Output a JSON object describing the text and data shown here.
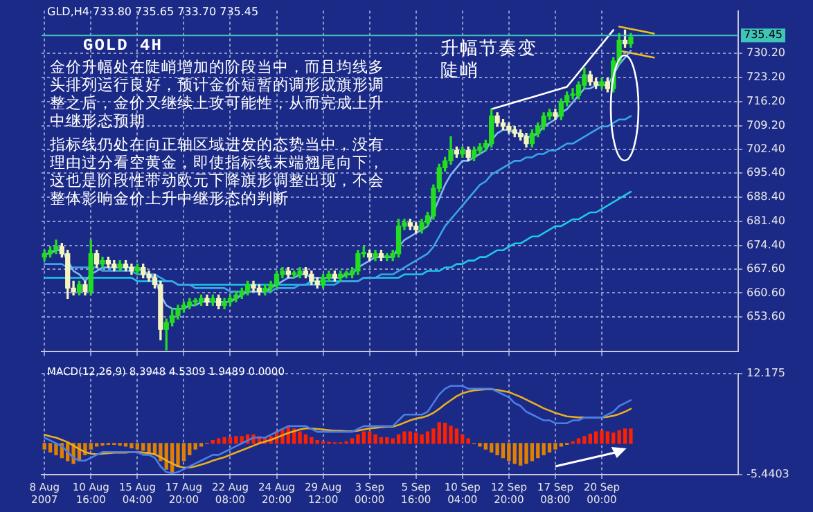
{
  "chart_data": [
    {
      "type": "candlestick",
      "title": "GOLD 4H",
      "subtitle": "GLD,H4 733.80 735.65 733.70 735.45",
      "ohlc": [
        [
          671,
          673,
          670,
          672
        ],
        [
          672,
          674,
          671,
          673
        ],
        [
          673,
          676,
          672,
          674
        ],
        [
          674,
          675,
          671,
          672
        ],
        [
          672,
          673,
          659,
          662
        ],
        [
          662,
          664,
          660,
          661
        ],
        [
          661,
          664,
          660,
          663
        ],
        [
          663,
          664,
          660,
          661
        ],
        [
          661,
          676,
          660,
          672
        ],
        [
          672,
          673,
          668,
          669
        ],
        [
          669,
          671,
          668,
          670
        ],
        [
          670,
          671,
          668,
          669
        ],
        [
          669,
          670,
          667,
          668
        ],
        [
          668,
          670,
          667,
          669
        ],
        [
          669,
          670,
          667,
          668
        ],
        [
          668,
          669,
          666,
          667
        ],
        [
          667,
          669,
          666,
          668
        ],
        [
          668,
          669,
          665,
          666
        ],
        [
          666,
          667,
          664,
          665
        ],
        [
          665,
          666,
          662,
          663
        ],
        [
          663,
          664,
          647,
          650
        ],
        [
          650,
          653,
          644,
          652
        ],
        [
          652,
          656,
          651,
          654
        ],
        [
          654,
          657,
          653,
          656
        ],
        [
          656,
          658,
          655,
          657
        ],
        [
          657,
          659,
          656,
          658
        ],
        [
          658,
          659,
          657,
          658
        ],
        [
          658,
          660,
          657,
          659
        ],
        [
          659,
          660,
          657,
          658
        ],
        [
          658,
          660,
          657,
          659
        ],
        [
          659,
          660,
          656,
          657
        ],
        [
          657,
          659,
          656,
          658
        ],
        [
          658,
          660,
          657,
          659
        ],
        [
          659,
          661,
          658,
          660
        ],
        [
          660,
          662,
          659,
          661
        ],
        [
          661,
          664,
          660,
          663
        ],
        [
          663,
          664,
          661,
          662
        ],
        [
          662,
          663,
          660,
          661
        ],
        [
          661,
          663,
          660,
          662
        ],
        [
          662,
          664,
          661,
          663
        ],
        [
          663,
          667,
          662,
          666
        ],
        [
          666,
          668,
          665,
          667
        ],
        [
          667,
          668,
          665,
          666
        ],
        [
          666,
          667,
          665,
          666
        ],
        [
          666,
          668,
          665,
          667
        ],
        [
          667,
          668,
          665,
          666
        ],
        [
          666,
          667,
          663,
          664
        ],
        [
          664,
          665,
          662,
          663
        ],
        [
          663,
          666,
          662,
          665
        ],
        [
          665,
          667,
          664,
          666
        ],
        [
          666,
          667,
          664,
          665
        ],
        [
          665,
          667,
          664,
          666
        ],
        [
          666,
          667,
          665,
          666
        ],
        [
          666,
          668,
          665,
          667
        ],
        [
          667,
          673,
          666,
          672
        ],
        [
          672,
          674,
          671,
          672
        ],
        [
          672,
          673,
          670,
          671
        ],
        [
          671,
          673,
          670,
          672
        ],
        [
          672,
          673,
          670,
          671
        ],
        [
          671,
          672,
          670,
          671
        ],
        [
          671,
          673,
          670,
          672
        ],
        [
          672,
          682,
          671,
          680
        ],
        [
          680,
          682,
          679,
          681
        ],
        [
          681,
          682,
          679,
          680
        ],
        [
          680,
          681,
          678,
          679
        ],
        [
          679,
          682,
          678,
          681
        ],
        [
          681,
          684,
          680,
          683
        ],
        [
          683,
          692,
          682,
          691
        ],
        [
          691,
          698,
          690,
          697
        ],
        [
          697,
          700,
          696,
          699
        ],
        [
          699,
          706,
          698,
          702
        ],
        [
          702,
          703,
          700,
          701
        ],
        [
          701,
          703,
          700,
          702
        ],
        [
          702,
          703,
          699,
          700
        ],
        [
          700,
          703,
          699,
          702
        ],
        [
          702,
          704,
          701,
          703
        ],
        [
          703,
          705,
          702,
          704
        ],
        [
          704,
          714,
          703,
          712
        ],
        [
          712,
          713,
          709,
          710
        ],
        [
          710,
          711,
          708,
          709
        ],
        [
          709,
          710,
          707,
          708
        ],
        [
          708,
          709,
          706,
          707
        ],
        [
          707,
          708,
          705,
          706
        ],
        [
          706,
          707,
          703,
          704
        ],
        [
          704,
          708,
          703,
          707
        ],
        [
          707,
          710,
          706,
          709
        ],
        [
          709,
          713,
          708,
          712
        ],
        [
          712,
          714,
          711,
          713
        ],
        [
          713,
          714,
          711,
          712
        ],
        [
          712,
          717,
          711,
          716
        ],
        [
          716,
          719,
          715,
          718
        ],
        [
          718,
          720,
          717,
          718
        ],
        [
          718,
          722,
          717,
          721
        ],
        [
          721,
          726,
          720,
          724
        ],
        [
          724,
          725,
          721,
          722
        ],
        [
          722,
          723,
          720,
          721
        ],
        [
          721,
          723,
          720,
          722
        ],
        [
          722,
          723,
          719,
          720
        ],
        [
          720,
          729,
          719,
          728
        ],
        [
          728,
          736,
          727,
          734
        ],
        [
          734,
          737,
          732,
          733
        ],
        [
          733,
          736,
          732,
          735
        ],
        null,
        null,
        null,
        null,
        null,
        null,
        null,
        null,
        null,
        null,
        null,
        null,
        null,
        null,
        null,
        null,
        null,
        null
      ],
      "colors": [
        "#22dd22",
        "#22dd22",
        "#22dd22",
        "#f4f4c0",
        "#f4f4c0",
        "#f4f4c0",
        "#22dd22",
        "#f4f4c0",
        "#22dd22",
        "#f4f4c0",
        "#22dd22",
        "#f4f4c0",
        "#f4f4c0",
        "#22dd22",
        "#f4f4c0",
        "#f4f4c0",
        "#22dd22",
        "#f4f4c0",
        "#f4f4c0",
        "#f4f4c0",
        "#f4f4c0",
        "#22dd22",
        "#22dd22",
        "#22dd22",
        "#22dd22",
        "#22dd22",
        "#22dd22",
        "#22dd22",
        "#f4f4c0",
        "#22dd22",
        "#f4f4c0",
        "#22dd22",
        "#22dd22",
        "#22dd22",
        "#22dd22",
        "#22dd22",
        "#f4f4c0",
        "#f4f4c0",
        "#22dd22",
        "#22dd22",
        "#22dd22",
        "#22dd22",
        "#f4f4c0",
        "#22dd22",
        "#22dd22",
        "#f4f4c0",
        "#f4f4c0",
        "#f4f4c0",
        "#22dd22",
        "#22dd22",
        "#f4f4c0",
        "#22dd22",
        "#22dd22",
        "#22dd22",
        "#22dd22",
        "#22dd22",
        "#f4f4c0",
        "#22dd22",
        "#f4f4c0",
        "#22dd22",
        "#22dd22",
        "#22dd22",
        "#22dd22",
        "#f4f4c0",
        "#f4f4c0",
        "#22dd22",
        "#22dd22",
        "#22dd22",
        "#22dd22",
        "#22dd22",
        "#22dd22",
        "#f4f4c0",
        "#22dd22",
        "#f4f4c0",
        "#22dd22",
        "#22dd22",
        "#22dd22",
        "#22dd22",
        "#f4f4c0",
        "#f4f4c0",
        "#f4f4c0",
        "#f4f4c0",
        "#f4f4c0",
        "#f4f4c0",
        "#22dd22",
        "#22dd22",
        "#22dd22",
        "#22dd22",
        "#f4f4c0",
        "#22dd22",
        "#22dd22",
        "#22dd22",
        "#22dd22",
        "#22dd22",
        "#f4f4c0",
        "#f4f4c0",
        "#22dd22",
        "#f4f4c0",
        "#22dd22",
        "#22dd22",
        "#f4f4c0",
        "#22dd22",
        null,
        null,
        null,
        null,
        null,
        null,
        null,
        null,
        null,
        null,
        null,
        null,
        null,
        null,
        null,
        null,
        null,
        null
      ],
      "series": [
        {
          "type": "line",
          "color": "#7fb8f0",
          "values": [
            672,
            672,
            673,
            673,
            670,
            667,
            666,
            664,
            666,
            667,
            668,
            668,
            668,
            668,
            668,
            668,
            668,
            667,
            666,
            665,
            660,
            657,
            656,
            656,
            656,
            657,
            657,
            658,
            658,
            658,
            658,
            658,
            658,
            659,
            660,
            661,
            661,
            661,
            661,
            662,
            663,
            664,
            665,
            665,
            666,
            666,
            665,
            665,
            665,
            665,
            665,
            665,
            666,
            666,
            668,
            669,
            670,
            671,
            671,
            671,
            671,
            674,
            676,
            677,
            678,
            679,
            680,
            684,
            688,
            692,
            695,
            697,
            699,
            699,
            700,
            701,
            702,
            705,
            707,
            708,
            708,
            707,
            707,
            706,
            706,
            707,
            709,
            710,
            711,
            713,
            714,
            716,
            718,
            720,
            720,
            721,
            721,
            721,
            724,
            727,
            729,
            731,
            null,
            null,
            null,
            null,
            null,
            null,
            null,
            null,
            null,
            null,
            null,
            null,
            null,
            null,
            null,
            null,
            null,
            null
          ]
        },
        {
          "type": "line",
          "color": "#3aa6e6",
          "values": [
            669,
            669,
            669,
            669,
            668,
            668,
            668,
            668,
            668,
            668,
            667,
            667,
            667,
            667,
            667,
            667,
            666,
            666,
            666,
            666,
            665,
            664,
            664,
            663,
            663,
            663,
            662,
            662,
            662,
            662,
            662,
            662,
            661,
            661,
            661,
            661,
            661,
            661,
            661,
            661,
            662,
            662,
            662,
            662,
            663,
            663,
            663,
            663,
            663,
            663,
            663,
            664,
            664,
            664,
            664,
            665,
            665,
            665,
            666,
            666,
            666,
            667,
            668,
            669,
            670,
            671,
            672,
            674,
            677,
            680,
            682,
            684,
            686,
            688,
            690,
            692,
            693,
            695,
            696,
            697,
            698,
            699,
            699,
            700,
            700,
            701,
            701,
            702,
            702,
            703,
            704,
            704,
            705,
            706,
            707,
            708,
            709,
            709,
            710,
            711,
            711,
            712,
            null,
            null,
            null,
            null,
            null,
            null,
            null,
            null,
            null,
            null,
            null,
            null,
            null,
            null,
            null,
            null,
            null,
            null
          ]
        },
        {
          "type": "line",
          "color": "#1ec8e8",
          "values": [
            665,
            665,
            665,
            665,
            665,
            665,
            665,
            665,
            665,
            665,
            665,
            665,
            665,
            665,
            665,
            665,
            664,
            664,
            664,
            664,
            664,
            664,
            664,
            663,
            663,
            663,
            663,
            663,
            663,
            663,
            663,
            663,
            663,
            663,
            663,
            663,
            663,
            663,
            663,
            663,
            663,
            663,
            663,
            663,
            663,
            663,
            664,
            664,
            664,
            664,
            664,
            664,
            664,
            664,
            664,
            665,
            665,
            665,
            665,
            665,
            665,
            665,
            666,
            666,
            666,
            666,
            667,
            667,
            667,
            668,
            668,
            669,
            669,
            670,
            670,
            671,
            671,
            672,
            673,
            673,
            674,
            675,
            675,
            676,
            677,
            677,
            678,
            679,
            680,
            680,
            681,
            682,
            682,
            683,
            684,
            684,
            685,
            686,
            687,
            688,
            689,
            690,
            null,
            null,
            null,
            null,
            null,
            null,
            null,
            null,
            null,
            null,
            null,
            null,
            null,
            null,
            null,
            null,
            null,
            null
          ]
        },
        {
          "type": "line",
          "color": "#ffffff",
          "values": [
            null,
            null,
            null,
            null,
            null,
            null,
            null,
            null,
            null,
            null,
            null,
            null,
            null,
            null,
            null,
            null,
            null,
            null,
            null,
            null,
            null,
            null,
            null,
            null,
            null,
            null,
            null,
            null,
            null,
            null,
            null,
            null,
            null,
            null,
            null,
            null,
            null,
            null,
            null,
            null,
            null,
            null,
            null,
            null,
            null,
            null,
            null,
            null,
            null,
            null,
            null,
            null,
            null,
            null,
            null,
            null,
            null,
            null,
            null,
            null,
            null,
            null,
            null,
            null,
            null,
            null,
            null,
            null,
            null,
            null,
            null,
            null,
            null,
            null,
            null,
            null,
            null,
            714,
            null,
            null,
            null,
            null,
            null,
            null,
            null,
            null,
            null,
            null,
            null,
            null,
            720.5,
            null,
            null,
            null,
            null,
            null,
            null,
            null,
            737,
            null,
            null,
            null,
            null,
            null,
            null,
            null,
            null,
            null,
            null,
            null,
            null,
            null,
            null,
            null,
            null,
            null,
            null,
            null,
            null,
            null
          ]
        },
        {
          "type": "line",
          "color": "#f0c020",
          "values": [
            null,
            null,
            null,
            null,
            null,
            null,
            null,
            null,
            null,
            null,
            null,
            null,
            null,
            null,
            null,
            null,
            null,
            null,
            null,
            null,
            null,
            null,
            null,
            null,
            null,
            null,
            null,
            null,
            null,
            null,
            null,
            null,
            null,
            null,
            null,
            null,
            null,
            null,
            null,
            null,
            null,
            null,
            null,
            null,
            null,
            null,
            null,
            null,
            null,
            null,
            null,
            null,
            null,
            null,
            null,
            null,
            null,
            null,
            null,
            null,
            null,
            null,
            null,
            null,
            null,
            null,
            null,
            null,
            null,
            null,
            null,
            null,
            null,
            null,
            null,
            null,
            null,
            null,
            null,
            null,
            null,
            null,
            null,
            null,
            null,
            null,
            null,
            null,
            null,
            null,
            null,
            null,
            null,
            null,
            null,
            null,
            null,
            null,
            null,
            738,
            null,
            null,
            null,
            null,
            null,
            736,
            null,
            null,
            null,
            null,
            null,
            null,
            null,
            null,
            null,
            null,
            null,
            null,
            null,
            null
          ]
        },
        {
          "type": "line",
          "color": "#f0c020",
          "values": [
            null,
            null,
            null,
            null,
            null,
            null,
            null,
            null,
            null,
            null,
            null,
            null,
            null,
            null,
            null,
            null,
            null,
            null,
            null,
            null,
            null,
            null,
            null,
            null,
            null,
            null,
            null,
            null,
            null,
            null,
            null,
            null,
            null,
            null,
            null,
            null,
            null,
            null,
            null,
            null,
            null,
            null,
            null,
            null,
            null,
            null,
            null,
            null,
            null,
            null,
            null,
            null,
            null,
            null,
            null,
            null,
            null,
            null,
            null,
            null,
            null,
            null,
            null,
            null,
            null,
            null,
            null,
            null,
            null,
            null,
            null,
            null,
            null,
            null,
            null,
            null,
            null,
            null,
            null,
            null,
            null,
            null,
            null,
            null,
            null,
            null,
            null,
            null,
            null,
            null,
            null,
            null,
            null,
            null,
            null,
            null,
            null,
            null,
            null,
            731,
            null,
            null,
            null,
            null,
            null,
            729,
            null,
            null,
            null,
            null,
            null,
            null,
            null,
            null,
            null,
            null,
            null,
            null,
            null,
            null
          ]
        }
      ],
      "ylim": [
        643.5,
        742.6
      ],
      "yticks": [
        {
          "value": 653.6,
          "label": "653.60"
        },
        {
          "value": 660.6,
          "label": "660.60"
        },
        {
          "value": 667.6,
          "label": "667.60"
        },
        {
          "value": 674.4,
          "label": "674.40"
        },
        {
          "value": 681.4,
          "label": "681.40"
        },
        {
          "value": 688.4,
          "label": "688.40"
        },
        {
          "value": 695.4,
          "label": "695.40"
        },
        {
          "value": 702.4,
          "label": "702.40"
        },
        {
          "value": 709.2,
          "label": "709.20"
        },
        {
          "value": 716.2,
          "label": "716.20"
        },
        {
          "value": 723.2,
          "label": "723.20"
        },
        {
          "value": 730.2,
          "label": "730.20"
        }
      ],
      "ref_lines": [
        {
          "axis": "y",
          "value": 735.45,
          "label": "735.45",
          "color": "#3fc4b8"
        }
      ],
      "annotations": [
        "升幅节奏变陡峭",
        "金价升幅处在陡峭增加的阶段当中，而且均线多头排列运行良好，预计金价短暂的调形成旗形调整之后，金价又继续上攻可能性，从而完成上升中继形态预期",
        "指标线仍处在向正轴区域进发的态势当中，没有理由过分看空黄金，即使指标线末端翘尾向下，这也是阶段性带动欧元下降旗形调整出现，不会整体影响金价上升中继形态的判断"
      ],
      "grid": true,
      "tick_labels": "y"
    },
    {
      "type": "bar",
      "title": "MACD(12,26,9) 8.3948 4.5309 1.9489 0.0000",
      "categories": [
        "8 Aug 2007",
        null,
        null,
        null,
        null,
        null,
        null,
        null,
        "10 Aug 16:00",
        null,
        null,
        null,
        null,
        null,
        null,
        null,
        "15 Aug 04:00",
        null,
        null,
        null,
        null,
        null,
        null,
        null,
        "17 Aug 20:00",
        null,
        null,
        null,
        null,
        null,
        null,
        null,
        "22 Aug 08:00",
        null,
        null,
        null,
        null,
        null,
        null,
        null,
        "24 Aug 20:00",
        null,
        null,
        null,
        null,
        null,
        null,
        null,
        "29 Aug 12:00",
        null,
        null,
        null,
        null,
        null,
        null,
        null,
        "3 Sep 00:00",
        null,
        null,
        null,
        null,
        null,
        null,
        null,
        "5 Sep 16:00",
        null,
        null,
        null,
        null,
        null,
        null,
        null,
        "10 Sep 04:00",
        null,
        null,
        null,
        null,
        null,
        null,
        null,
        "12 Sep 20:00",
        null,
        null,
        null,
        null,
        null,
        null,
        null,
        "17 Sep 08:00",
        null,
        null,
        null,
        null,
        null,
        null,
        null,
        "20 Sep 00:00",
        null,
        null,
        null,
        null,
        null,
        null,
        null,
        null,
        null,
        null,
        null,
        null,
        null,
        null,
        null,
        null,
        null,
        null,
        null,
        null,
        null,
        null,
        null
      ],
      "series": [
        {
          "type": "bar",
          "values": [
            -1,
            -1.5,
            -2,
            -2.5,
            -3,
            -3.5,
            -3,
            -2,
            -1,
            -0.5,
            -0.3,
            -0.2,
            -0.2,
            -0.3,
            -0.5,
            -0.8,
            -1,
            -1.2,
            -1.5,
            -2,
            -3,
            -4.5,
            -5,
            -4,
            -3,
            -2,
            -1,
            -0.5,
            0,
            0.5,
            0.8,
            1,
            1,
            1.2,
            1.2,
            1.5,
            1.5,
            1.2,
            1,
            1.2,
            2,
            2.5,
            3,
            2.5,
            2,
            1.5,
            1,
            0.5,
            0.3,
            0.2,
            0.1,
            0.1,
            0.3,
            0.8,
            1.5,
            2,
            2,
            1.5,
            1,
            1,
            0.8,
            1.5,
            2,
            2,
            1.8,
            1.5,
            2,
            2.5,
            3.6,
            3.5,
            3,
            2.5,
            1.5,
            0.8,
            0,
            -0.5,
            -1,
            -1.5,
            -2,
            -2.5,
            -3,
            -3.5,
            -3.8,
            -3.5,
            -3,
            -2.5,
            -2,
            -1.5,
            -1,
            -0.5,
            -0.2,
            0.3,
            0.8,
            1.2,
            1.6,
            2,
            2.2,
            2,
            1.8,
            2.2,
            2.5,
            2.5,
            null,
            null,
            null,
            null,
            null,
            null,
            null,
            null,
            null,
            null,
            null,
            null,
            null,
            null,
            null,
            null,
            null,
            null
          ],
          "colors": [
            "#e08000",
            "#e08000",
            "#e08000",
            "#e08000",
            "#e08000",
            "#e08000",
            "#e08000",
            "#e08000",
            "#e08000",
            "#e08000",
            "#e08000",
            "#e08000",
            "#e08000",
            "#e08000",
            "#e08000",
            "#e08000",
            "#e08000",
            "#e08000",
            "#e08000",
            "#e08000",
            "#e08000",
            "#e08000",
            "#e08000",
            "#e08000",
            "#e08000",
            "#e08000",
            "#e08000",
            "#e08000",
            "#e08000",
            "#ff2000",
            "#ff2000",
            "#ff2000",
            "#ff2000",
            "#ff2000",
            "#ff2000",
            "#ff2000",
            "#ff2000",
            "#ff2000",
            "#ff2000",
            "#ff2000",
            "#ff2000",
            "#ff2000",
            "#ff2000",
            "#ff2000",
            "#ff2000",
            "#ff2000",
            "#ff2000",
            "#ff2000",
            "#ff2000",
            "#ff2000",
            "#ff2000",
            "#ff2000",
            "#ff2000",
            "#ff2000",
            "#ff2000",
            "#ff2000",
            "#ff2000",
            "#ff2000",
            "#ff2000",
            "#ff2000",
            "#ff2000",
            "#ff2000",
            "#ff2000",
            "#ff2000",
            "#ff2000",
            "#ff2000",
            "#ff2000",
            "#ff2000",
            "#ff2000",
            "#ff2000",
            "#ff2000",
            "#ff2000",
            "#ff2000",
            "#ff2000",
            "#e08000",
            "#e08000",
            "#e08000",
            "#e08000",
            "#e08000",
            "#e08000",
            "#e08000",
            "#e08000",
            "#e08000",
            "#e08000",
            "#e08000",
            "#e08000",
            "#e08000",
            "#e08000",
            "#e08000",
            "#e08000",
            "#e08000",
            "#ff2000",
            "#ff2000",
            "#ff2000",
            "#ff2000",
            "#ff2000",
            "#ff2000",
            "#ff2000",
            "#ff2000",
            "#ff2000",
            "#ff2000",
            "#ff2000",
            null,
            null,
            null,
            null,
            null,
            null,
            null,
            null,
            null,
            null,
            null,
            null,
            null,
            null,
            null,
            null,
            null,
            null
          ]
        },
        {
          "type": "line",
          "color": "#4a7fe8",
          "values": [
            1,
            0.5,
            0,
            -0.5,
            -1.5,
            -2.5,
            -3,
            -3,
            -2.5,
            -2,
            -1.5,
            -1.5,
            -1.5,
            -1.5,
            -1.5,
            -1.5,
            -1.5,
            -2,
            -2,
            -2.5,
            -4,
            -5,
            -5.2,
            -5,
            -4.5,
            -4,
            -3.5,
            -3,
            -2.5,
            -2,
            -2,
            -1.5,
            -1,
            -0.5,
            0,
            0.5,
            1,
            1,
            1,
            1.5,
            2,
            2.5,
            3,
            3,
            3,
            3,
            2.5,
            2,
            2,
            2,
            2,
            2,
            2,
            2,
            2.5,
            3,
            3,
            3,
            3,
            3,
            3,
            4,
            5,
            5,
            5,
            5,
            5.5,
            7,
            8.5,
            9.5,
            10,
            10,
            10,
            9.5,
            9.5,
            9.5,
            9.5,
            9.5,
            9,
            8.5,
            8,
            7,
            6.5,
            5.5,
            5,
            4.5,
            4,
            4,
            3.5,
            3.5,
            3.5,
            4,
            4,
            4.5,
            4.5,
            4.5,
            4.5,
            5,
            5.5,
            6.5,
            7,
            7.5,
            null,
            null,
            null,
            null,
            null,
            null,
            null,
            null,
            null,
            null,
            null,
            null,
            null,
            null,
            null,
            null,
            null,
            null
          ]
        },
        {
          "type": "line",
          "color": "#e8b020",
          "values": [
            1.5,
            1.2,
            1,
            0.6,
            0.2,
            -0.4,
            -1,
            -1.5,
            -1.8,
            -1.9,
            -1.8,
            -1.7,
            -1.6,
            -1.6,
            -1.6,
            -1.5,
            -1.5,
            -1.6,
            -1.7,
            -1.9,
            -2.4,
            -3,
            -3.5,
            -4,
            -4.2,
            -4.2,
            -4,
            -3.7,
            -3.4,
            -3,
            -2.7,
            -2.4,
            -2,
            -1.6,
            -1.2,
            -0.8,
            -0.4,
            0,
            0.3,
            0.6,
            1,
            1.4,
            1.8,
            2.1,
            2.4,
            2.6,
            2.6,
            2.5,
            2.4,
            2.3,
            2.2,
            2.2,
            2.1,
            2.1,
            2.2,
            2.4,
            2.6,
            2.7,
            2.8,
            2.9,
            2.9,
            3.2,
            3.6,
            4,
            4.3,
            4.5,
            4.8,
            5.3,
            6,
            6.8,
            7.5,
            8.2,
            8.7,
            9,
            9.2,
            9.3,
            9.4,
            9.4,
            9.3,
            9.1,
            8.9,
            8.5,
            8.1,
            7.6,
            7.1,
            6.6,
            6.1,
            5.7,
            5.3,
            5,
            4.7,
            4.6,
            4.5,
            4.5,
            4.5,
            4.5,
            4.5,
            4.6,
            4.8,
            5.1,
            5.5,
            6,
            null,
            null,
            null,
            null,
            null,
            null,
            null,
            null,
            null,
            null,
            null,
            null,
            null,
            null,
            null,
            null,
            null,
            null
          ]
        }
      ],
      "ylim": [
        -5.4403,
        12.175
      ],
      "yticks": [
        -5.4403,
        12.175
      ],
      "grid": true
    }
  ]
}
